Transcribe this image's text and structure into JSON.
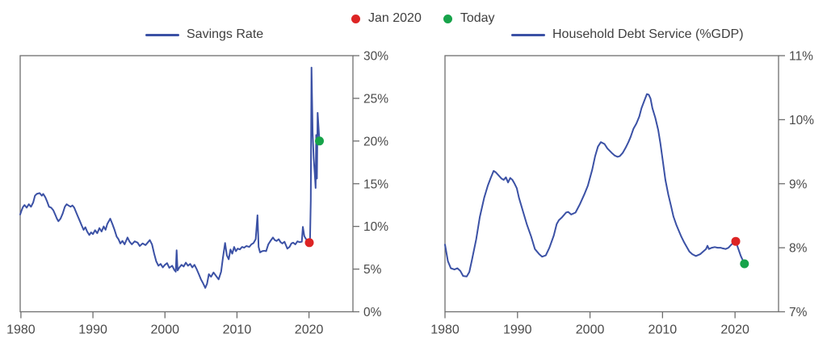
{
  "colors": {
    "line": "#3b51a5",
    "red_dot": "#dd2424",
    "green_dot": "#17a34a",
    "axis": "#6e6e6e",
    "tick_text": "#4a4a4a"
  },
  "top_legend": {
    "items": [
      {
        "label": "Jan 2020",
        "color_key": "red_dot"
      },
      {
        "label": "Today",
        "color_key": "green_dot"
      }
    ]
  },
  "chart_data": [
    {
      "id": "savings",
      "type": "line",
      "legend": "Savings Rate",
      "x_range": [
        1979.9,
        2026.1
      ],
      "y_range": [
        0,
        30
      ],
      "x_ticks": [
        1980,
        1990,
        2000,
        2010,
        2020
      ],
      "y_ticks": [
        {
          "value": 0,
          "label": "0%"
        },
        {
          "value": 5,
          "label": "5%"
        },
        {
          "value": 10,
          "label": "10%"
        },
        {
          "value": 15,
          "label": "15%"
        },
        {
          "value": 20,
          "label": "20%"
        },
        {
          "value": 25,
          "label": "25%"
        },
        {
          "value": 30,
          "label": "30%"
        }
      ],
      "series_points": [
        [
          1979.9,
          11.4
        ],
        [
          1980.1,
          11.9
        ],
        [
          1980.3,
          12.3
        ],
        [
          1980.5,
          12.5
        ],
        [
          1980.8,
          12.2
        ],
        [
          1981.1,
          12.6
        ],
        [
          1981.4,
          12.3
        ],
        [
          1981.7,
          12.8
        ],
        [
          1981.95,
          13.6
        ],
        [
          1982.2,
          13.8
        ],
        [
          1982.6,
          13.9
        ],
        [
          1982.9,
          13.6
        ],
        [
          1983.1,
          13.8
        ],
        [
          1983.4,
          13.4
        ],
        [
          1983.65,
          12.9
        ],
        [
          1983.9,
          12.3
        ],
        [
          1984.2,
          12.2
        ],
        [
          1984.5,
          11.9
        ],
        [
          1984.75,
          11.4
        ],
        [
          1985.0,
          10.9
        ],
        [
          1985.2,
          10.6
        ],
        [
          1985.5,
          10.9
        ],
        [
          1985.8,
          11.5
        ],
        [
          1986.1,
          12.3
        ],
        [
          1986.35,
          12.6
        ],
        [
          1986.6,
          12.45
        ],
        [
          1986.9,
          12.3
        ],
        [
          1987.15,
          12.45
        ],
        [
          1987.4,
          12.2
        ],
        [
          1987.65,
          11.7
        ],
        [
          1987.9,
          11.2
        ],
        [
          1988.2,
          10.6
        ],
        [
          1988.45,
          10.1
        ],
        [
          1988.7,
          9.6
        ],
        [
          1988.95,
          9.9
        ],
        [
          1989.2,
          9.4
        ],
        [
          1989.5,
          9.0
        ],
        [
          1989.75,
          9.3
        ],
        [
          1990.0,
          9.1
        ],
        [
          1990.3,
          9.55
        ],
        [
          1990.6,
          9.2
        ],
        [
          1990.9,
          9.8
        ],
        [
          1991.2,
          9.4
        ],
        [
          1991.5,
          10.0
        ],
        [
          1991.75,
          9.6
        ],
        [
          1992.0,
          10.3
        ],
        [
          1992.4,
          10.9
        ],
        [
          1992.7,
          10.3
        ],
        [
          1993.0,
          9.6
        ],
        [
          1993.3,
          8.8
        ],
        [
          1993.55,
          8.5
        ],
        [
          1993.8,
          8.0
        ],
        [
          1994.1,
          8.3
        ],
        [
          1994.4,
          7.9
        ],
        [
          1994.8,
          8.7
        ],
        [
          1995.1,
          8.2
        ],
        [
          1995.4,
          7.9
        ],
        [
          1995.8,
          8.25
        ],
        [
          1996.2,
          8.1
        ],
        [
          1996.5,
          7.7
        ],
        [
          1996.9,
          8.0
        ],
        [
          1997.3,
          7.8
        ],
        [
          1997.6,
          8.1
        ],
        [
          1997.9,
          8.4
        ],
        [
          1998.2,
          7.9
        ],
        [
          1998.5,
          6.8
        ],
        [
          1998.8,
          5.9
        ],
        [
          1999.1,
          5.4
        ],
        [
          1999.4,
          5.6
        ],
        [
          1999.7,
          5.2
        ],
        [
          2000.0,
          5.5
        ],
        [
          2000.3,
          5.7
        ],
        [
          2000.6,
          5.15
        ],
        [
          2001.0,
          5.4
        ],
        [
          2001.3,
          4.9
        ],
        [
          2001.5,
          4.7
        ],
        [
          2001.62,
          7.2
        ],
        [
          2001.75,
          4.85
        ],
        [
          2002.0,
          5.2
        ],
        [
          2002.3,
          5.5
        ],
        [
          2002.6,
          5.3
        ],
        [
          2002.9,
          5.75
        ],
        [
          2003.2,
          5.4
        ],
        [
          2003.5,
          5.6
        ],
        [
          2003.8,
          5.2
        ],
        [
          2004.1,
          5.5
        ],
        [
          2004.4,
          5.0
        ],
        [
          2004.7,
          4.4
        ],
        [
          2005.0,
          3.8
        ],
        [
          2005.25,
          3.4
        ],
        [
          2005.6,
          2.8
        ],
        [
          2005.85,
          3.3
        ],
        [
          2006.1,
          4.4
        ],
        [
          2006.4,
          4.1
        ],
        [
          2006.75,
          4.6
        ],
        [
          2007.1,
          4.2
        ],
        [
          2007.45,
          3.8
        ],
        [
          2007.8,
          4.7
        ],
        [
          2008.05,
          6.3
        ],
        [
          2008.35,
          8.05
        ],
        [
          2008.6,
          6.6
        ],
        [
          2008.85,
          6.15
        ],
        [
          2009.1,
          7.3
        ],
        [
          2009.35,
          6.8
        ],
        [
          2009.6,
          7.6
        ],
        [
          2009.85,
          7.1
        ],
        [
          2010.1,
          7.4
        ],
        [
          2010.4,
          7.3
        ],
        [
          2010.7,
          7.6
        ],
        [
          2011.0,
          7.5
        ],
        [
          2011.3,
          7.7
        ],
        [
          2011.7,
          7.6
        ],
        [
          2012.0,
          7.9
        ],
        [
          2012.3,
          8.05
        ],
        [
          2012.6,
          8.5
        ],
        [
          2012.85,
          11.3
        ],
        [
          2013.0,
          7.6
        ],
        [
          2013.2,
          6.95
        ],
        [
          2013.5,
          7.1
        ],
        [
          2013.8,
          7.15
        ],
        [
          2014.05,
          7.1
        ],
        [
          2014.35,
          7.9
        ],
        [
          2014.7,
          8.35
        ],
        [
          2015.0,
          8.7
        ],
        [
          2015.25,
          8.4
        ],
        [
          2015.5,
          8.3
        ],
        [
          2015.8,
          8.5
        ],
        [
          2016.05,
          8.15
        ],
        [
          2016.3,
          8.0
        ],
        [
          2016.6,
          8.2
        ],
        [
          2017.0,
          7.4
        ],
        [
          2017.3,
          7.6
        ],
        [
          2017.55,
          8.0
        ],
        [
          2017.8,
          8.1
        ],
        [
          2018.1,
          7.9
        ],
        [
          2018.4,
          8.25
        ],
        [
          2018.7,
          8.15
        ],
        [
          2019.0,
          8.2
        ],
        [
          2019.15,
          9.95
        ],
        [
          2019.35,
          8.85
        ],
        [
          2019.6,
          8.5
        ],
        [
          2019.85,
          8.3
        ],
        [
          2020.05,
          8.1
        ],
        [
          2020.15,
          8.5
        ],
        [
          2020.25,
          13.0
        ],
        [
          2020.35,
          28.6
        ],
        [
          2020.5,
          21.0
        ],
        [
          2020.65,
          18.0
        ],
        [
          2020.8,
          16.3
        ],
        [
          2020.92,
          14.5
        ],
        [
          2021.0,
          20.7
        ],
        [
          2021.1,
          15.6
        ],
        [
          2021.2,
          23.3
        ],
        [
          2021.45,
          20.0
        ]
      ],
      "markers": [
        {
          "name": "jan-2020-marker",
          "x": 2020.05,
          "y": 8.1,
          "color_key": "red_dot"
        },
        {
          "name": "today-marker",
          "x": 2021.45,
          "y": 20.0,
          "color_key": "green_dot"
        }
      ]
    },
    {
      "id": "debt",
      "type": "line",
      "legend": "Household Debt Service (%GDP)",
      "x_range": [
        1980,
        2026.0
      ],
      "y_range": [
        7,
        11
      ],
      "x_ticks": [
        1980,
        1990,
        2000,
        2010,
        2020
      ],
      "y_ticks": [
        {
          "value": 7,
          "label": "7%"
        },
        {
          "value": 8,
          "label": "8%"
        },
        {
          "value": 9,
          "label": "9%"
        },
        {
          "value": 10,
          "label": "10%"
        },
        {
          "value": 11,
          "label": "11%"
        }
      ],
      "series_points": [
        [
          1980.0,
          8.05
        ],
        [
          1980.4,
          7.79
        ],
        [
          1980.8,
          7.68
        ],
        [
          1981.3,
          7.66
        ],
        [
          1981.7,
          7.68
        ],
        [
          1982.1,
          7.64
        ],
        [
          1982.5,
          7.56
        ],
        [
          1983.0,
          7.55
        ],
        [
          1983.35,
          7.62
        ],
        [
          1983.7,
          7.8
        ],
        [
          1984.3,
          8.13
        ],
        [
          1984.8,
          8.48
        ],
        [
          1985.4,
          8.78
        ],
        [
          1985.9,
          8.97
        ],
        [
          1986.3,
          9.09
        ],
        [
          1986.7,
          9.2
        ],
        [
          1987.0,
          9.18
        ],
        [
          1987.4,
          9.13
        ],
        [
          1987.8,
          9.08
        ],
        [
          1988.1,
          9.06
        ],
        [
          1988.4,
          9.1
        ],
        [
          1988.7,
          9.02
        ],
        [
          1989.0,
          9.09
        ],
        [
          1989.3,
          9.06
        ],
        [
          1989.6,
          9.0
        ],
        [
          1989.9,
          8.93
        ],
        [
          1990.2,
          8.78
        ],
        [
          1990.8,
          8.55
        ],
        [
          1991.3,
          8.36
        ],
        [
          1991.9,
          8.17
        ],
        [
          1992.4,
          7.98
        ],
        [
          1993.0,
          7.9
        ],
        [
          1993.4,
          7.86
        ],
        [
          1993.9,
          7.88
        ],
        [
          1994.4,
          8.0
        ],
        [
          1995.0,
          8.19
        ],
        [
          1995.4,
          8.37
        ],
        [
          1995.7,
          8.43
        ],
        [
          1996.1,
          8.47
        ],
        [
          1996.7,
          8.55
        ],
        [
          1997.0,
          8.56
        ],
        [
          1997.4,
          8.52
        ],
        [
          1998.0,
          8.55
        ],
        [
          1998.6,
          8.68
        ],
        [
          1999.2,
          8.83
        ],
        [
          1999.7,
          8.97
        ],
        [
          2000.3,
          9.22
        ],
        [
          2000.7,
          9.43
        ],
        [
          2001.1,
          9.58
        ],
        [
          2001.5,
          9.65
        ],
        [
          2002.0,
          9.62
        ],
        [
          2002.4,
          9.55
        ],
        [
          2003.0,
          9.48
        ],
        [
          2003.4,
          9.44
        ],
        [
          2003.8,
          9.42
        ],
        [
          2004.1,
          9.43
        ],
        [
          2004.5,
          9.48
        ],
        [
          2004.9,
          9.56
        ],
        [
          2005.3,
          9.65
        ],
        [
          2005.6,
          9.73
        ],
        [
          2006.0,
          9.86
        ],
        [
          2006.4,
          9.94
        ],
        [
          2006.8,
          10.05
        ],
        [
          2007.1,
          10.18
        ],
        [
          2007.5,
          10.3
        ],
        [
          2007.85,
          10.4
        ],
        [
          2008.1,
          10.39
        ],
        [
          2008.35,
          10.33
        ],
        [
          2008.6,
          10.18
        ],
        [
          2009.0,
          10.03
        ],
        [
          2009.4,
          9.84
        ],
        [
          2009.7,
          9.63
        ],
        [
          2010.1,
          9.31
        ],
        [
          2010.4,
          9.06
        ],
        [
          2010.8,
          8.83
        ],
        [
          2011.2,
          8.64
        ],
        [
          2011.5,
          8.49
        ],
        [
          2011.9,
          8.36
        ],
        [
          2012.3,
          8.25
        ],
        [
          2012.6,
          8.17
        ],
        [
          2013.0,
          8.08
        ],
        [
          2013.4,
          8.0
        ],
        [
          2013.7,
          7.94
        ],
        [
          2014.1,
          7.9
        ],
        [
          2014.6,
          7.87
        ],
        [
          2015.2,
          7.9
        ],
        [
          2015.6,
          7.94
        ],
        [
          2016.0,
          7.98
        ],
        [
          2016.2,
          8.03
        ],
        [
          2016.4,
          7.98
        ],
        [
          2016.8,
          8.0
        ],
        [
          2017.2,
          8.01
        ],
        [
          2017.6,
          8.0
        ],
        [
          2018.0,
          8.0
        ],
        [
          2018.3,
          7.99
        ],
        [
          2018.7,
          7.98
        ],
        [
          2019.1,
          8.0
        ],
        [
          2019.5,
          8.05
        ],
        [
          2019.8,
          8.08
        ],
        [
          2020.1,
          8.1
        ],
        [
          2020.4,
          8.0
        ],
        [
          2020.8,
          7.87
        ],
        [
          2021.3,
          7.75
        ]
      ],
      "markers": [
        {
          "name": "jan-2020-marker",
          "x": 2020.1,
          "y": 8.1,
          "color_key": "red_dot"
        },
        {
          "name": "today-marker",
          "x": 2021.3,
          "y": 7.75,
          "color_key": "green_dot"
        }
      ]
    }
  ]
}
